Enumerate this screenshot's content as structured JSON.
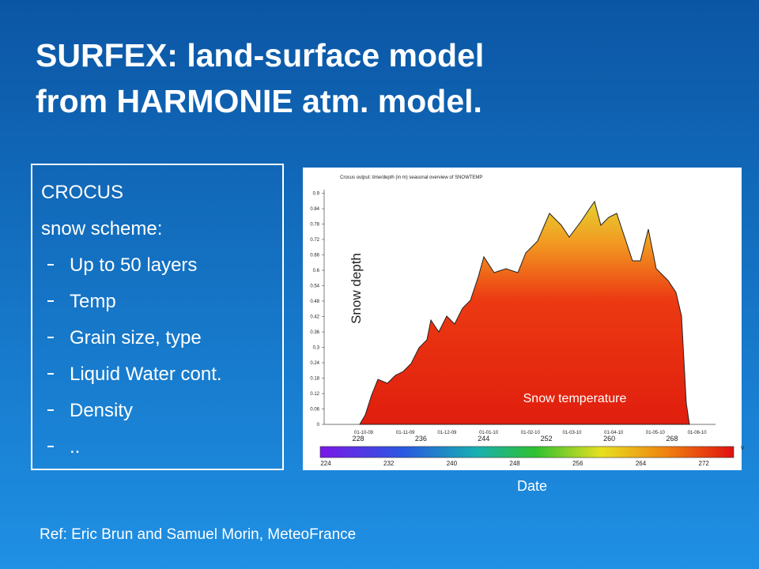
{
  "title": [
    "SURFEX: land-surface model",
    "from HARMONIE atm. model."
  ],
  "box": {
    "heading": [
      "CROCUS",
      "snow scheme:"
    ],
    "items": [
      "Up to 50 layers",
      "Temp",
      "Grain size, type",
      "Liquid Water cont.",
      "Density",
      ".."
    ]
  },
  "figure": {
    "title": "Crocus output: time/depth (in m) seasonal overview of SNOWTEMP",
    "yticks": [
      0,
      0.06,
      0.12,
      0.18,
      0.24,
      0.3,
      0.36,
      0.42,
      0.48,
      0.54,
      0.6,
      0.66,
      0.72,
      0.78,
      0.84,
      0.9
    ],
    "xticks": [
      "01-10-09",
      "01-11-09",
      "01-12-09",
      "01-01-10",
      "01-02-10",
      "01-03-10",
      "01-04-10",
      "01-05-10",
      "01-06-10"
    ],
    "overlap_ticks": [
      228,
      236,
      244,
      252,
      260,
      268
    ],
    "colorbar_ticks": [
      224,
      232,
      240,
      248,
      256,
      264,
      272
    ],
    "colorbar_unit": "v",
    "y_label": "Snow depth",
    "area_label": "Snow temperature",
    "x_label": "Date"
  },
  "reference": "Ref: Eric Brun and Samuel Morin, MeteoFrance"
}
